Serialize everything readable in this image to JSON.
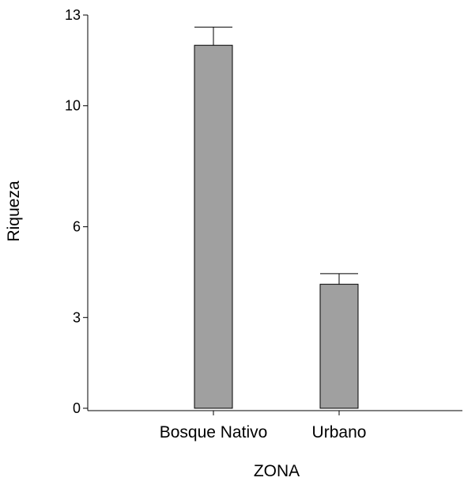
{
  "chart_data": {
    "type": "bar",
    "categories": [
      "Bosque Nativo",
      "Urbano"
    ],
    "values": [
      12.0,
      4.1
    ],
    "error_upper": [
      12.6,
      4.45
    ],
    "xlabel": "ZONA",
    "ylabel": "Riqueza",
    "ylim": [
      0,
      13
    ],
    "yticks": [
      0,
      3,
      6,
      10,
      13
    ],
    "ytick_labels": [
      "0",
      "3",
      "6",
      "10",
      "13"
    ],
    "grid": false,
    "legend": "none",
    "colors": {
      "bar_fill": "#a0a0a0",
      "bar_stroke": "#000000",
      "axis": "#000000"
    }
  }
}
